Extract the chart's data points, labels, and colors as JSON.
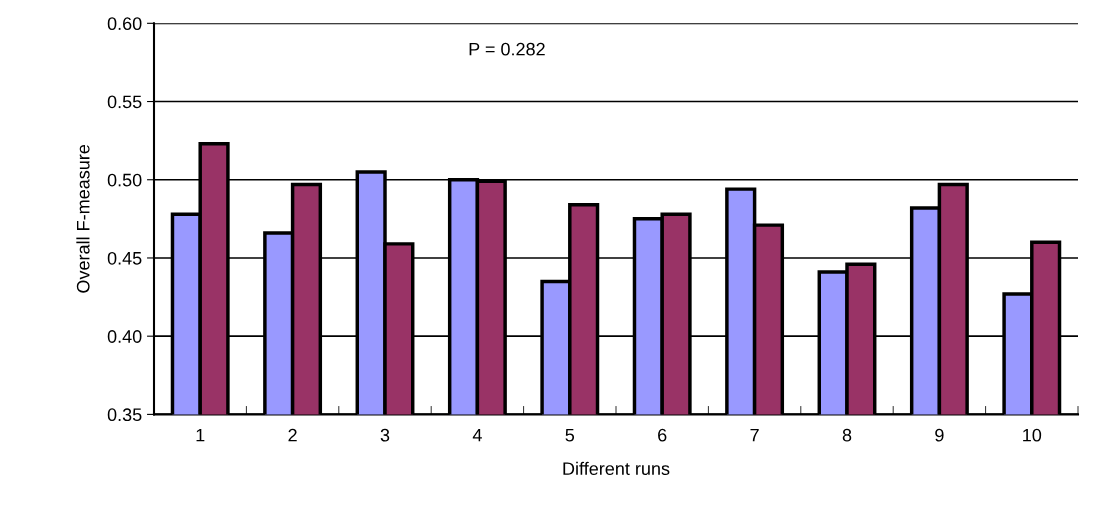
{
  "chart_data": {
    "type": "bar",
    "xlabel": "Different runs",
    "ylabel": "Overall F-measure",
    "categories": [
      "1",
      "2",
      "3",
      "4",
      "5",
      "6",
      "7",
      "8",
      "9",
      "10"
    ],
    "series": [
      {
        "color": "#9999ff",
        "values": [
          0.478,
          0.466,
          0.505,
          0.5,
          0.435,
          0.475,
          0.494,
          0.441,
          0.482,
          0.427
        ]
      },
      {
        "color": "#993366",
        "values": [
          0.523,
          0.497,
          0.459,
          0.499,
          0.484,
          0.478,
          0.471,
          0.446,
          0.497,
          0.46
        ]
      }
    ],
    "ylim": [
      0.35,
      0.6
    ],
    "yticks": [
      {
        "value": 0.35,
        "label": "0.35"
      },
      {
        "value": 0.4,
        "label": "0.40"
      },
      {
        "value": 0.45,
        "label": "0.45"
      },
      {
        "value": 0.5,
        "label": "0.50"
      },
      {
        "value": 0.55,
        "label": "0.55"
      },
      {
        "value": 0.6,
        "label": "0.60"
      }
    ],
    "grid": "y",
    "annotations": [
      "P = 0.282"
    ]
  }
}
